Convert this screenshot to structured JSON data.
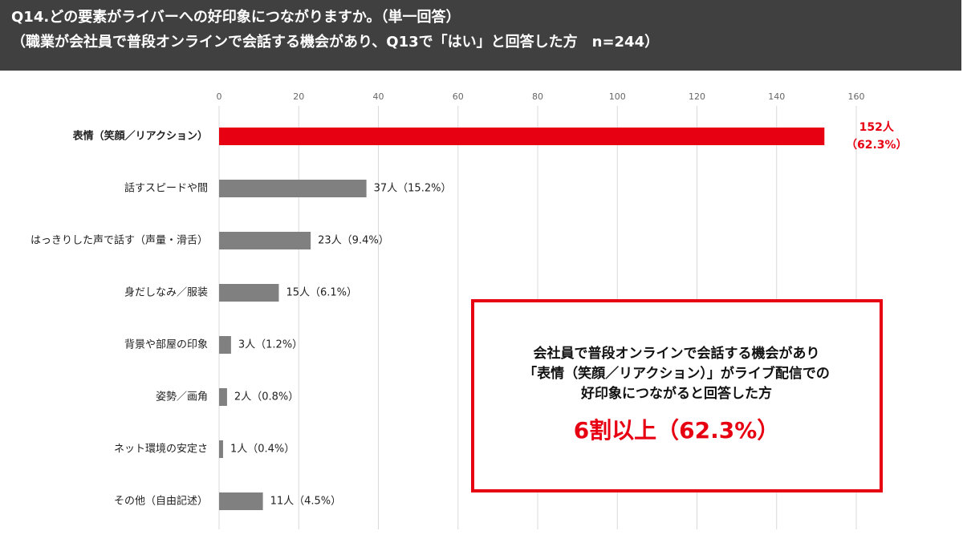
{
  "chart_data": {
    "type": "bar",
    "orientation": "horizontal",
    "title": "Q14.どの要素がライバーへの好印象につながりますか。（単一回答）",
    "subtitle": "（職業が会社員で普段オンラインで会話する機会があり、Q13で「はい」と回答した方　n=244）",
    "categories": [
      "表情（笑顔／リアクション）",
      "話すスピードや間",
      "はっきりした声で話す（声量・滑舌）",
      "身だしなみ／服装",
      "背景や部屋の印象",
      "姿勢／画角",
      "ネット環境の安定さ",
      "その他（自由記述）"
    ],
    "values": [
      152,
      37,
      23,
      15,
      3,
      2,
      1,
      11
    ],
    "value_labels": [
      "152人（62.3%）",
      "37人（15.2%）",
      "23人（9.4%）",
      "15人（6.1%）",
      "3人（1.2%）",
      "2人（0.8%）",
      "1人（0.4%）",
      "11人（4.5%）"
    ],
    "colors": [
      "#e60012",
      "#808080",
      "#808080",
      "#808080",
      "#808080",
      "#808080",
      "#808080",
      "#808080"
    ],
    "xlim": [
      0,
      160
    ],
    "xticks": [
      0,
      20,
      40,
      60,
      80,
      100,
      120,
      140,
      160
    ],
    "grid": true,
    "annotation": {
      "lines": [
        "会社員で普段オンラインで会話する機会があり",
        "「表情（笑顔／リアクション）」がライブ配信での",
        "好印象につながると回答した方"
      ],
      "highlight": "6割以上（62.3%）",
      "color": "#e60012"
    }
  }
}
